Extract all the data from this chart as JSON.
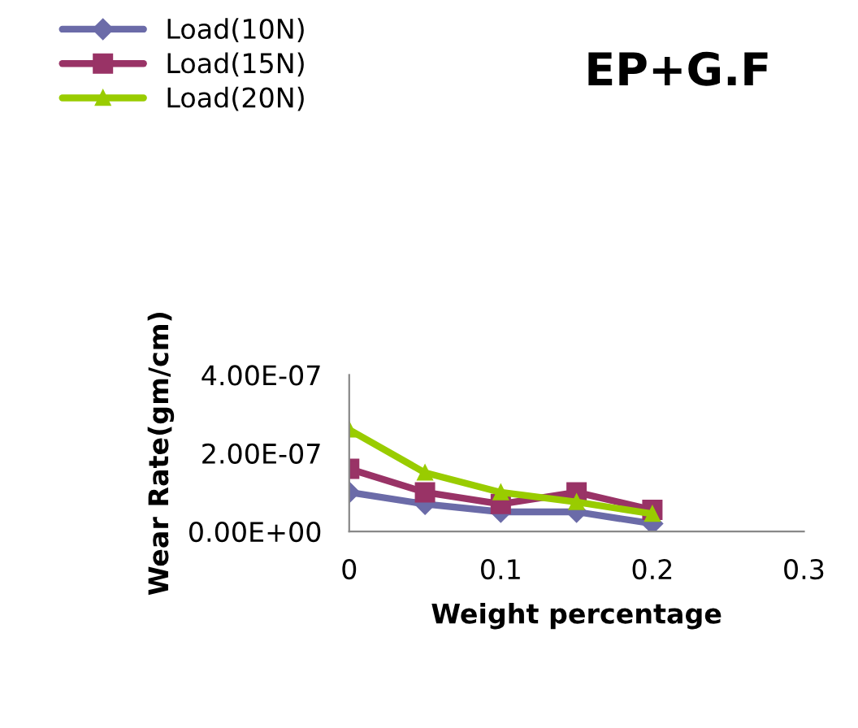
{
  "chart_data": {
    "type": "line",
    "title": "EP+G.F",
    "xlabel": "Weight percentage",
    "ylabel": "Wear Rate(gm/cm)",
    "x": [
      0,
      0.05,
      0.1,
      0.15,
      0.2
    ],
    "series": [
      {
        "name": "Load(10N)",
        "color": "#6b6ba8",
        "marker": "diamond",
        "values": [
          1e-07,
          7e-08,
          5e-08,
          5e-08,
          2e-08
        ]
      },
      {
        "name": "Load(15N)",
        "color": "#993366",
        "marker": "square",
        "values": [
          1.6e-07,
          1e-07,
          7e-08,
          1e-07,
          5.5e-08
        ]
      },
      {
        "name": "Load(20N)",
        "color": "#99cc00",
        "marker": "triangle",
        "values": [
          2.6e-07,
          1.5e-07,
          1e-07,
          7.5e-08,
          4.5e-08
        ]
      }
    ],
    "xlim": [
      0,
      0.3
    ],
    "xticks": [
      0,
      0.1,
      0.2,
      0.3
    ],
    "ylim": [
      0,
      4e-07
    ],
    "yticks": [
      {
        "value": 0,
        "label": "0.00E+00"
      },
      {
        "value": 2e-07,
        "label": "2.00E-07"
      },
      {
        "value": 4e-07,
        "label": "4.00E-07"
      }
    ],
    "grid": false,
    "legend": "top left",
    "line_style": "solid"
  }
}
